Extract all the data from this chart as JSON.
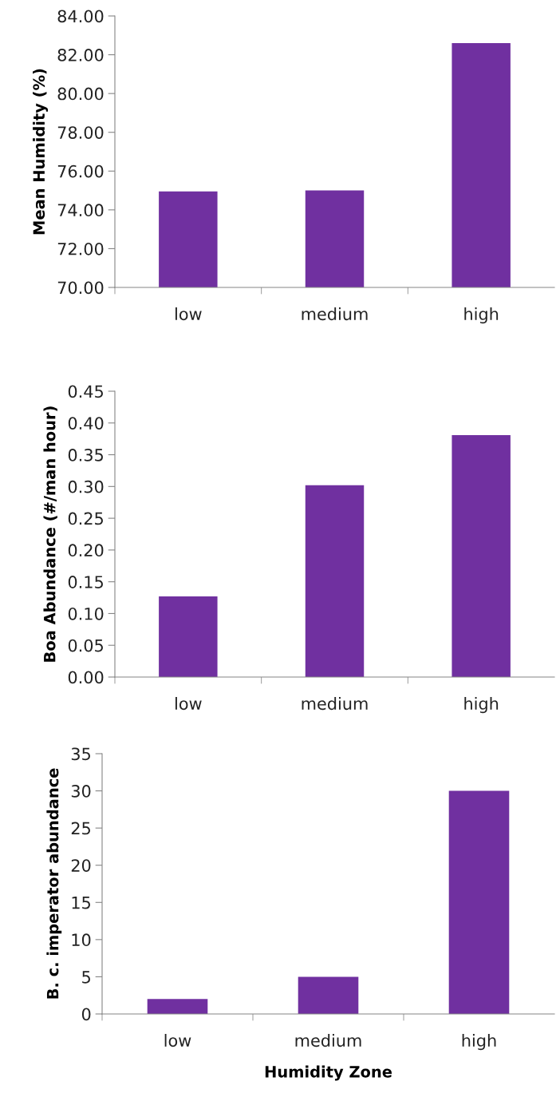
{
  "chart_data": [
    {
      "type": "bar",
      "ylabel": "Mean Humidity (%)",
      "categories": [
        "low",
        "medium",
        "high"
      ],
      "values": [
        74.95,
        75.0,
        82.6
      ],
      "color": "#7030a0",
      "ylim": [
        70,
        84
      ],
      "yticks": [
        {
          "value": 70,
          "label": "70.00"
        },
        {
          "value": 72,
          "label": "72.00"
        },
        {
          "value": 74,
          "label": "74.00"
        },
        {
          "value": 76,
          "label": "76.00"
        },
        {
          "value": 78,
          "label": "78.00"
        },
        {
          "value": 80,
          "label": "80.00"
        },
        {
          "value": 82,
          "label": "82.00"
        },
        {
          "value": 84,
          "label": "84.00"
        }
      ],
      "grid": false,
      "legend": false
    },
    {
      "type": "bar",
      "ylabel": "Boa Abundance (#/man hour)",
      "categories": [
        "low",
        "medium",
        "high"
      ],
      "values": [
        0.127,
        0.302,
        0.381
      ],
      "color": "#7030a0",
      "ylim": [
        0,
        0.45
      ],
      "yticks": [
        {
          "value": 0,
          "label": "0.00"
        },
        {
          "value": 0.05,
          "label": "0.05"
        },
        {
          "value": 0.1,
          "label": "0.10"
        },
        {
          "value": 0.15,
          "label": "0.15"
        },
        {
          "value": 0.2,
          "label": "0.20"
        },
        {
          "value": 0.25,
          "label": "0.25"
        },
        {
          "value": 0.3,
          "label": "0.30"
        },
        {
          "value": 0.35,
          "label": "0.35"
        },
        {
          "value": 0.4,
          "label": "0.40"
        },
        {
          "value": 0.45,
          "label": "0.45"
        }
      ],
      "grid": false,
      "legend": false
    },
    {
      "type": "bar",
      "ylabel": "B. c. imperator abundance",
      "xlabel": "Humidity Zone",
      "categories": [
        "low",
        "medium",
        "high"
      ],
      "values": [
        2,
        5,
        30
      ],
      "color": "#7030a0",
      "ylim": [
        0,
        35
      ],
      "yticks": [
        0,
        5,
        10,
        15,
        20,
        25,
        30,
        35
      ],
      "grid": false,
      "legend": false
    }
  ]
}
